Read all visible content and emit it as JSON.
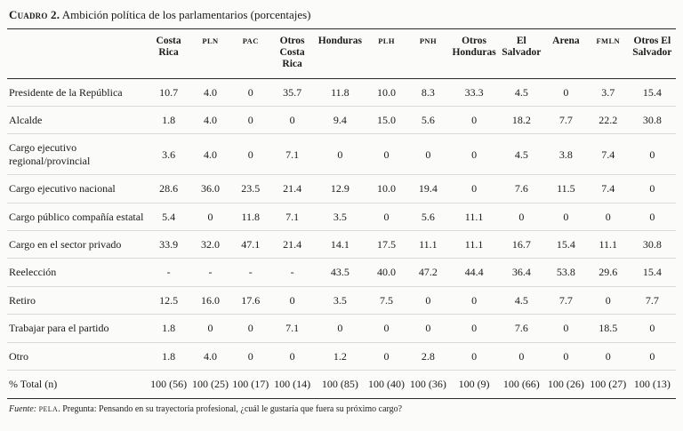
{
  "title": {
    "label": "Cuadro 2.",
    "text": " Ambición política de los parlamentarios (porcentajes)"
  },
  "table": {
    "columns": [
      {
        "label": "Costa Rica",
        "small": false
      },
      {
        "label": "PLN",
        "small": true
      },
      {
        "label": "PAC",
        "small": true
      },
      {
        "label": "Otros Costa Rica",
        "small": false
      },
      {
        "label": "Honduras",
        "small": false
      },
      {
        "label": "PLH",
        "small": true
      },
      {
        "label": "PNH",
        "small": true
      },
      {
        "label": "Otros Honduras",
        "small": false
      },
      {
        "label": "El Salvador",
        "small": false
      },
      {
        "label": "Arena",
        "small": false
      },
      {
        "label": "FMLN",
        "small": true
      },
      {
        "label": "Otros El Salvador",
        "small": false
      }
    ],
    "rows": [
      {
        "label": "Presidente de la República",
        "values": [
          "10.7",
          "4.0",
          "0",
          "35.7",
          "11.8",
          "10.0",
          "8.3",
          "33.3",
          "4.5",
          "0",
          "3.7",
          "15.4"
        ]
      },
      {
        "label": "Alcalde",
        "values": [
          "1.8",
          "4.0",
          "0",
          "0",
          "9.4",
          "15.0",
          "5.6",
          "0",
          "18.2",
          "7.7",
          "22.2",
          "30.8"
        ]
      },
      {
        "label": "Cargo ejecutivo regional/provincial",
        "values": [
          "3.6",
          "4.0",
          "0",
          "7.1",
          "0",
          "0",
          "0",
          "0",
          "4.5",
          "3.8",
          "7.4",
          "0"
        ]
      },
      {
        "label": "Cargo ejecutivo nacional",
        "values": [
          "28.6",
          "36.0",
          "23.5",
          "21.4",
          "12.9",
          "10.0",
          "19.4",
          "0",
          "7.6",
          "11.5",
          "7.4",
          "0"
        ]
      },
      {
        "label": "Cargo público compañía estatal",
        "values": [
          "5.4",
          "0",
          "11.8",
          "7.1",
          "3.5",
          "0",
          "5.6",
          "11.1",
          "0",
          "0",
          "0",
          "0"
        ]
      },
      {
        "label": "Cargo en el sector privado",
        "values": [
          "33.9",
          "32.0",
          "47.1",
          "21.4",
          "14.1",
          "17.5",
          "11.1",
          "11.1",
          "16.7",
          "15.4",
          "11.1",
          "30.8"
        ]
      },
      {
        "label": "Reelección",
        "values": [
          "-",
          "-",
          "-",
          "-",
          "43.5",
          "40.0",
          "47.2",
          "44.4",
          "36.4",
          "53.8",
          "29.6",
          "15.4"
        ]
      },
      {
        "label": "Retiro",
        "values": [
          "12.5",
          "16.0",
          "17.6",
          "0",
          "3.5",
          "7.5",
          "0",
          "0",
          "4.5",
          "7.7",
          "0",
          "7.7"
        ]
      },
      {
        "label": "Trabajar para el partido",
        "values": [
          "1.8",
          "0",
          "0",
          "7.1",
          "0",
          "0",
          "0",
          "0",
          "7.6",
          "0",
          "18.5",
          "0"
        ]
      },
      {
        "label": "Otro",
        "values": [
          "1.8",
          "4.0",
          "0",
          "0",
          "1.2",
          "0",
          "2.8",
          "0",
          "0",
          "0",
          "0",
          "0"
        ]
      }
    ],
    "total_row": {
      "label": "% Total (n)",
      "values": [
        "100 (56)",
        "100 (25)",
        "100 (17)",
        "100 (14)",
        "100 (85)",
        "100 (40)",
        "100 (36)",
        "100 (9)",
        "100 (66)",
        "100 (26)",
        "100 (27)",
        "100 (13)"
      ]
    }
  },
  "footnote": {
    "fuente": "Fuente: ",
    "pela": "PELA",
    "rest": ". Pregunta: Pensando en su trayectoria profesional, ¿cuál le gustaría que fuera su próximo cargo?"
  },
  "chart_data": {
    "type": "table",
    "title": "Cuadro 2. Ambición política de los parlamentarios (porcentajes)",
    "columns": [
      "Costa Rica",
      "PLN",
      "PAC",
      "Otros Costa Rica",
      "Honduras",
      "PLH",
      "PNH",
      "Otros Honduras",
      "El Salvador",
      "Arena",
      "FMLN",
      "Otros El Salvador"
    ],
    "rows": [
      {
        "label": "Presidente de la República",
        "values": [
          10.7,
          4.0,
          0,
          35.7,
          11.8,
          10.0,
          8.3,
          33.3,
          4.5,
          0,
          3.7,
          15.4
        ]
      },
      {
        "label": "Alcalde",
        "values": [
          1.8,
          4.0,
          0,
          0,
          9.4,
          15.0,
          5.6,
          0,
          18.2,
          7.7,
          22.2,
          30.8
        ]
      },
      {
        "label": "Cargo ejecutivo regional/provincial",
        "values": [
          3.6,
          4.0,
          0,
          7.1,
          0,
          0,
          0,
          0,
          4.5,
          3.8,
          7.4,
          0
        ]
      },
      {
        "label": "Cargo ejecutivo nacional",
        "values": [
          28.6,
          36.0,
          23.5,
          21.4,
          12.9,
          10.0,
          19.4,
          0,
          7.6,
          11.5,
          7.4,
          0
        ]
      },
      {
        "label": "Cargo público compañía estatal",
        "values": [
          5.4,
          0,
          11.8,
          7.1,
          3.5,
          0,
          5.6,
          11.1,
          0,
          0,
          0,
          0
        ]
      },
      {
        "label": "Cargo en el sector privado",
        "values": [
          33.9,
          32.0,
          47.1,
          21.4,
          14.1,
          17.5,
          11.1,
          11.1,
          16.7,
          15.4,
          11.1,
          30.8
        ]
      },
      {
        "label": "Reelección",
        "values": [
          null,
          null,
          null,
          null,
          43.5,
          40.0,
          47.2,
          44.4,
          36.4,
          53.8,
          29.6,
          15.4
        ]
      },
      {
        "label": "Retiro",
        "values": [
          12.5,
          16.0,
          17.6,
          0,
          3.5,
          7.5,
          0,
          0,
          4.5,
          7.7,
          0,
          7.7
        ]
      },
      {
        "label": "Trabajar para el partido",
        "values": [
          1.8,
          0,
          0,
          7.1,
          0,
          0,
          0,
          0,
          7.6,
          0,
          18.5,
          0
        ]
      },
      {
        "label": "Otro",
        "values": [
          1.8,
          4.0,
          0,
          0,
          1.2,
          0,
          2.8,
          0,
          0,
          0,
          0,
          0
        ]
      },
      {
        "label": "% Total (n)",
        "values": [
          "100 (56)",
          "100 (25)",
          "100 (17)",
          "100 (14)",
          "100 (85)",
          "100 (40)",
          "100 (36)",
          "100 (9)",
          "100 (66)",
          "100 (26)",
          "100 (27)",
          "100 (13)"
        ]
      }
    ],
    "source_note": "Fuente: PELA. Pregunta: Pensando en su trayectoria profesional, ¿cuál le gustaría que fuera su próximo cargo?"
  }
}
